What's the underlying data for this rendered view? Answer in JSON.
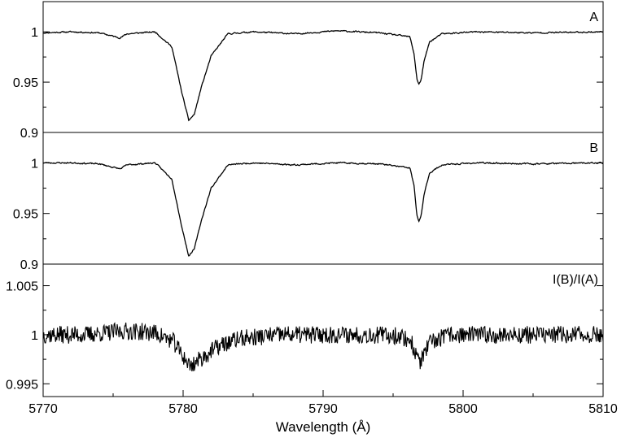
{
  "chart_data": [
    {
      "type": "line",
      "label": "A",
      "xlim": [
        5770,
        5810
      ],
      "ylim": [
        0.9,
        1.03
      ],
      "yticks": [
        0.9,
        0.95,
        1
      ],
      "ytick_labels": [
        "0.9",
        "0.95",
        "1"
      ],
      "series": [
        {
          "x": [
            5770,
            5772,
            5774,
            5775.5,
            5776,
            5778,
            5779.2,
            5779.9,
            5780.4,
            5780.8,
            5781.3,
            5782.0,
            5783.2,
            5785,
            5788,
            5791,
            5794,
            5796.2,
            5796.5,
            5796.7,
            5796.85,
            5797.0,
            5797.2,
            5797.6,
            5798.5,
            5801,
            5805,
            5810
          ],
          "y": [
            0.999,
            1.0,
            0.999,
            0.994,
            0.998,
            1.0,
            0.985,
            0.94,
            0.912,
            0.918,
            0.945,
            0.976,
            0.998,
            1.0,
            0.998,
            1.001,
            0.999,
            0.995,
            0.978,
            0.953,
            0.948,
            0.952,
            0.97,
            0.99,
            0.998,
            1.0,
            0.999,
            1.0
          ]
        }
      ]
    },
    {
      "type": "line",
      "label": "B",
      "xlim": [
        5770,
        5810
      ],
      "ylim": [
        0.9,
        1.03
      ],
      "yticks": [
        0.9,
        0.95,
        1
      ],
      "ytick_labels": [
        "0.9",
        "0.95",
        "1"
      ],
      "series": [
        {
          "x": [
            5770,
            5772,
            5774,
            5775.5,
            5776,
            5778,
            5779.2,
            5779.9,
            5780.4,
            5780.8,
            5781.3,
            5782.0,
            5783.2,
            5785,
            5788,
            5791,
            5794,
            5796.2,
            5796.5,
            5796.7,
            5796.85,
            5797.0,
            5797.2,
            5797.6,
            5798.5,
            5801,
            5805,
            5810
          ],
          "y": [
            1.0,
            1.0,
            0.999,
            0.994,
            0.998,
            1.0,
            0.984,
            0.937,
            0.908,
            0.915,
            0.943,
            0.975,
            0.998,
            1.0,
            0.998,
            1.0,
            0.999,
            0.995,
            0.977,
            0.948,
            0.942,
            0.947,
            0.968,
            0.99,
            0.998,
            1.0,
            0.999,
            1.0
          ]
        }
      ]
    },
    {
      "type": "line",
      "label": "I(B)/I(A)",
      "xlim": [
        5770,
        5810
      ],
      "ylim": [
        0.9937,
        1.0072
      ],
      "yticks": [
        0.995,
        1,
        1.005
      ],
      "ytick_labels": [
        "0.995",
        "1",
        "1.005"
      ],
      "xticks": [
        5770,
        5780,
        5790,
        5800,
        5810
      ],
      "xtick_labels": [
        "5770",
        "5780",
        "5790",
        "5800",
        "5810"
      ],
      "xlabel": "Wavelength (Å)",
      "series": [
        {
          "x": [
            5770,
            5773,
            5776,
            5778,
            5779.3,
            5780.0,
            5780.5,
            5781.2,
            5782.5,
            5784,
            5787,
            5790,
            5793,
            5795.5,
            5796.3,
            5796.6,
            5796.9,
            5797.2,
            5797.7,
            5799,
            5802,
            5806,
            5810
          ],
          "y": [
            1.0,
            1.0,
            1.0004,
            1.0002,
            0.9993,
            0.9978,
            0.9968,
            0.9975,
            0.9988,
            0.9996,
            1.0,
            1.0,
            1.0,
            0.9999,
            0.9993,
            0.998,
            0.9972,
            0.998,
            0.9992,
            1.0,
            1.0,
            1.0,
            1.0
          ]
        }
      ]
    }
  ]
}
